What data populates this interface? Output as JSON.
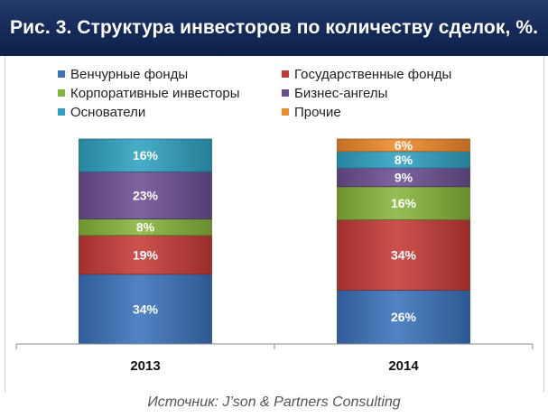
{
  "header": {
    "title": "Рис. 3. Структура инвесторов по количеству сделок, %."
  },
  "source": "Источник: J’son & Partners Consulting",
  "chart_data": {
    "type": "bar",
    "stacked": true,
    "percent": true,
    "categories": [
      "2013",
      "2014"
    ],
    "series": [
      {
        "name": "Венчурные фонды",
        "values": [
          34,
          26
        ],
        "color": "#3a72bb",
        "labels": [
          "34%",
          "26%"
        ]
      },
      {
        "name": "Государственные фонды",
        "values": [
          19,
          34
        ],
        "color": "#c53a37",
        "labels": [
          "19%",
          "34%"
        ]
      },
      {
        "name": "Корпоративные инвесторы",
        "values": [
          8,
          16
        ],
        "color": "#86b53b",
        "labels": [
          "8%",
          "16%"
        ]
      },
      {
        "name": "Бизнес-ангелы",
        "values": [
          23,
          9
        ],
        "color": "#6c4f92",
        "labels": [
          "23%",
          "9%"
        ]
      },
      {
        "name": "Основатели",
        "values": [
          16,
          8
        ],
        "color": "#2fa2c2",
        "labels": [
          "16%",
          "8%"
        ]
      },
      {
        "name": "Прочие",
        "values": [
          0,
          6
        ],
        "color": "#ee8a2c",
        "labels": [
          "",
          "6%"
        ]
      }
    ],
    "legend_position": "top",
    "grid": false
  }
}
